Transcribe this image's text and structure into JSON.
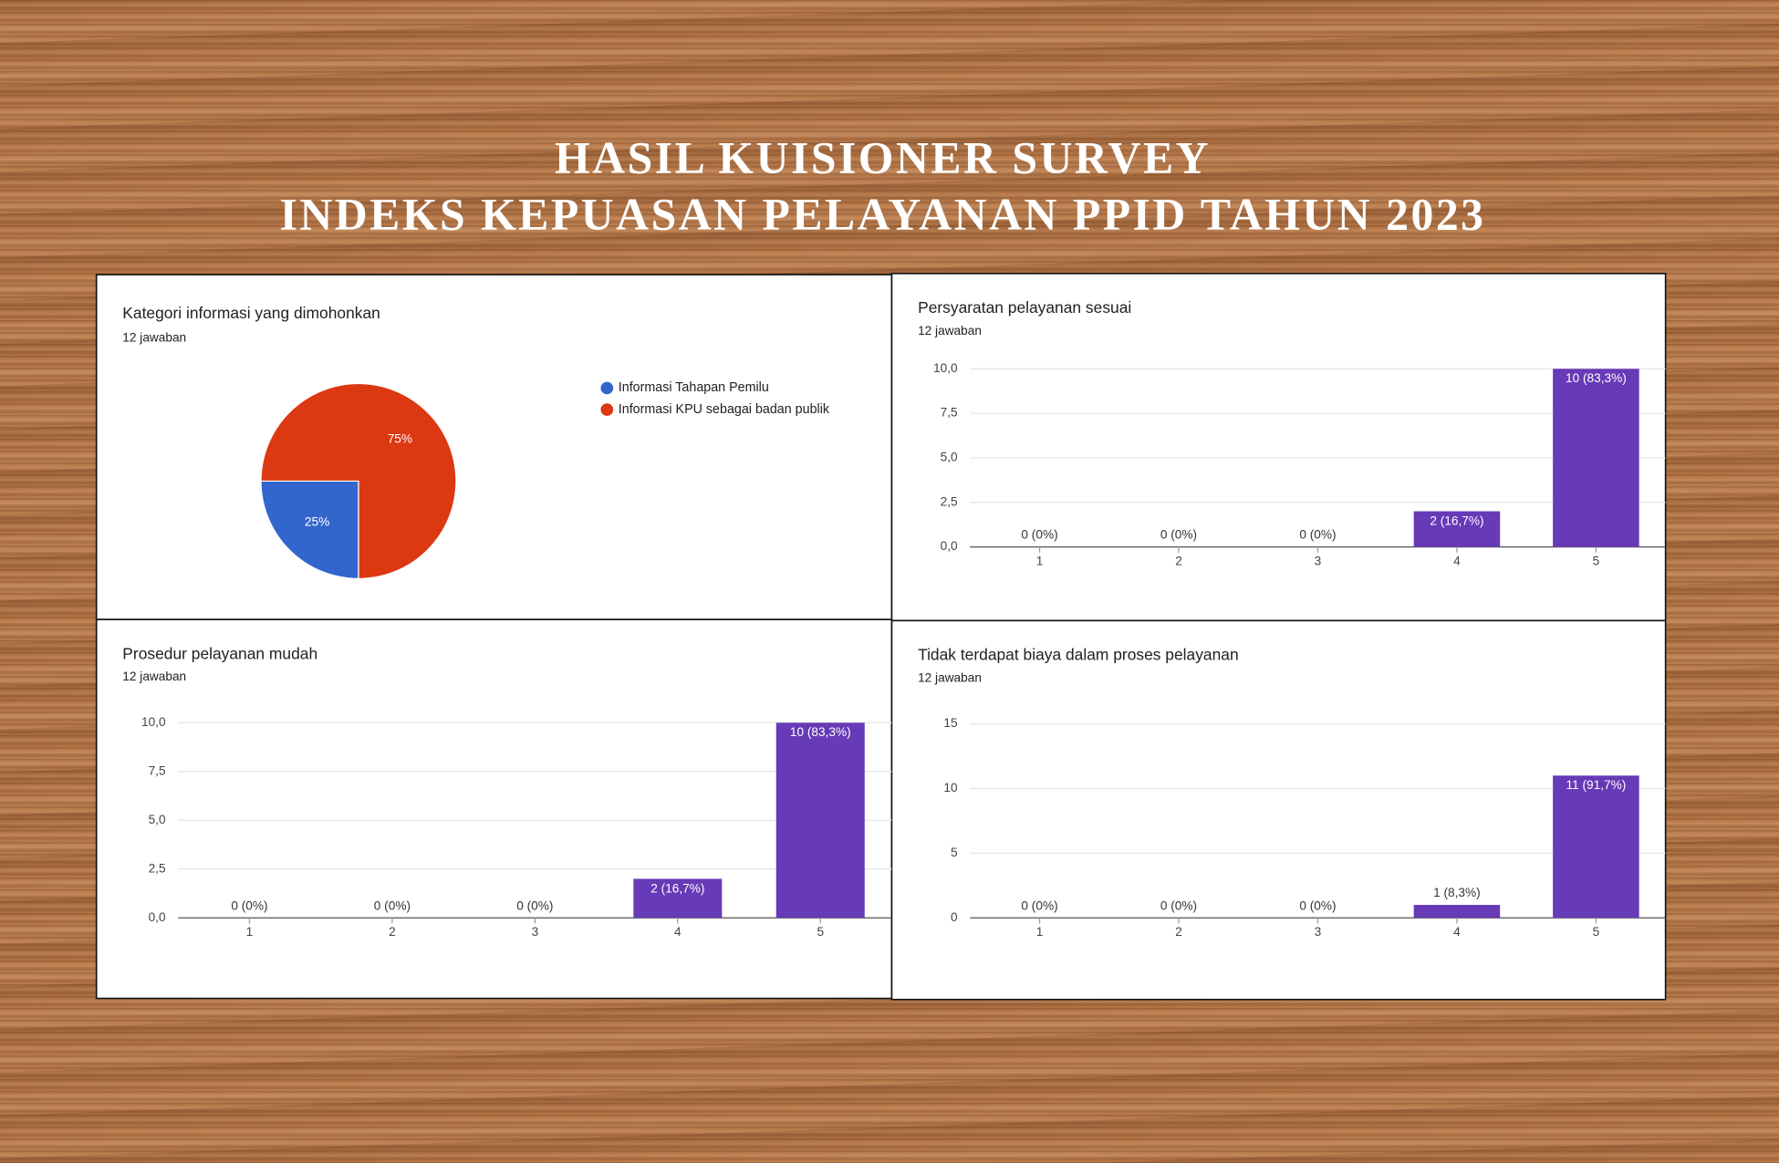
{
  "title": [
    "HASIL KUISIONER SURVEY",
    "INDEKS KEPUASAN PELAYANAN PPID TAHUN 2023"
  ],
  "chart_data": [
    {
      "type": "pie",
      "title": "Kategori informasi yang dimohonkan",
      "subtitle": "12 jawaban",
      "categories": [
        "Informasi Tahapan Pemilu",
        "Informasi KPU sebagai badan publik"
      ],
      "values": [
        25,
        75
      ],
      "value_labels": [
        "25%",
        "75%"
      ],
      "colors": [
        "#3366cc",
        "#dc3912"
      ]
    },
    {
      "type": "bar",
      "title": "Persyaratan pelayanan sesuai",
      "subtitle": "12 jawaban",
      "categories": [
        "1",
        "2",
        "3",
        "4",
        "5"
      ],
      "values": [
        0,
        0,
        0,
        2,
        10
      ],
      "value_labels": [
        "0 (0%)",
        "0 (0%)",
        "0 (0%)",
        "2 (16,7%)",
        "10 (83,3%)"
      ],
      "color": "#673ab7",
      "ylim": [
        0,
        10
      ],
      "yticks": [
        {
          "value": 0,
          "label": "0,0"
        },
        {
          "value": 2.5,
          "label": "2,5"
        },
        {
          "value": 5,
          "label": "5,0"
        },
        {
          "value": 7.5,
          "label": "7,5"
        },
        {
          "value": 10,
          "label": "10,0"
        }
      ],
      "grid": true
    },
    {
      "type": "bar",
      "title": "Prosedur pelayanan mudah",
      "subtitle": "12 jawaban",
      "categories": [
        "1",
        "2",
        "3",
        "4",
        "5"
      ],
      "values": [
        0,
        0,
        0,
        2,
        10
      ],
      "value_labels": [
        "0 (0%)",
        "0 (0%)",
        "0 (0%)",
        "2 (16,7%)",
        "10 (83,3%)"
      ],
      "color": "#673ab7",
      "ylim": [
        0,
        10
      ],
      "yticks": [
        {
          "value": 0,
          "label": "0,0"
        },
        {
          "value": 2.5,
          "label": "2,5"
        },
        {
          "value": 5,
          "label": "5,0"
        },
        {
          "value": 7.5,
          "label": "7,5"
        },
        {
          "value": 10,
          "label": "10,0"
        }
      ],
      "grid": true
    },
    {
      "type": "bar",
      "title": "Tidak terdapat biaya dalam proses pelayanan",
      "subtitle": "12 jawaban",
      "categories": [
        "1",
        "2",
        "3",
        "4",
        "5"
      ],
      "values": [
        0,
        0,
        0,
        1,
        11
      ],
      "value_labels": [
        "0 (0%)",
        "0 (0%)",
        "0 (0%)",
        "1 (8,3%)",
        "11 (91,7%)"
      ],
      "color": "#673ab7",
      "ylim": [
        0,
        15
      ],
      "yticks": [
        0,
        5,
        10,
        15
      ],
      "grid": true
    }
  ]
}
